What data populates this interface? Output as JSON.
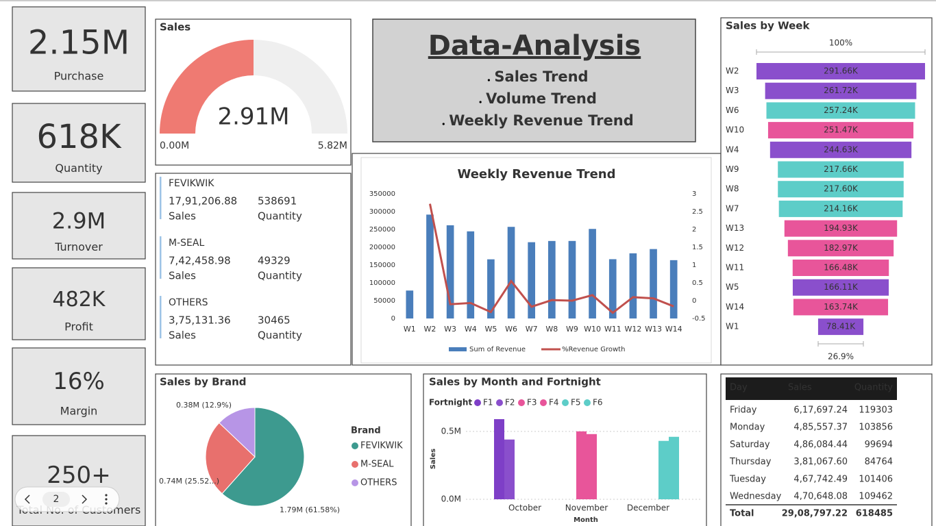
{
  "kpis": [
    {
      "value": "2.15M",
      "label": "Purchase"
    },
    {
      "value": "618K",
      "label": "Quantity"
    },
    {
      "value": "2.9M",
      "label": "Turnover"
    },
    {
      "value": "482K",
      "label": "Profit"
    },
    {
      "value": "16%",
      "label": "Margin"
    },
    {
      "value": "250+",
      "label": "Total No. of Customers"
    }
  ],
  "pager": {
    "page": 2
  },
  "title_box": {
    "title": "Data-Analysis",
    "items": [
      "Sales Trend",
      "Volume Trend",
      "Weekly Revenue Trend"
    ]
  },
  "brand_cards": [
    {
      "name": "FEVIKWIK",
      "sales": "17,91,206.88",
      "sales_label": "Sales",
      "quantity": 538691,
      "quantity_label": "Quantity"
    },
    {
      "name": "M-SEAL",
      "sales": "7,42,458.98",
      "sales_label": "Sales",
      "quantity": 49329,
      "quantity_label": "Quantity"
    },
    {
      "name": "OTHERS",
      "sales": "3,75,131.36",
      "sales_label": "Sales",
      "quantity": 30465,
      "quantity_label": "Quantity"
    }
  ],
  "table": {
    "columns": [
      "Day",
      "Sales",
      "Quantity"
    ],
    "rows": [
      [
        "Friday",
        "6,17,697.24",
        119303
      ],
      [
        "Monday",
        "4,85,557.37",
        103856
      ],
      [
        "Saturday",
        "4,86,084.44",
        99694
      ],
      [
        "Thursday",
        "3,81,067.60",
        84764
      ],
      [
        "Tuesday",
        "4,67,742.49",
        101406
      ],
      [
        "Wednesday",
        "4,70,648.08",
        109462
      ]
    ],
    "total": [
      "Total",
      "29,08,797.22",
      618485
    ]
  },
  "chart_data": [
    {
      "type": "gauge",
      "title": "Sales",
      "values": [
        2.91
      ],
      "value_labels": [
        "2.91M"
      ],
      "color": "#ef7a72",
      "ylim": [
        0,
        5.82
      ],
      "yticks": [
        {
          "value": 0,
          "label": "0.00M"
        },
        {
          "value": 5.82,
          "label": "5.82M"
        }
      ]
    },
    {
      "type": "combo",
      "title": "Weekly Revenue Trend",
      "categories": [
        "W1",
        "W2",
        "W3",
        "W4",
        "W5",
        "W6",
        "W7",
        "W8",
        "W9",
        "W10",
        "W11",
        "W12",
        "W13",
        "W14"
      ],
      "series": [
        {
          "name": "Sum of Revenue",
          "type": "bar",
          "color": "#4a7ebb",
          "values": [
            78410,
            291660,
            261720,
            244630,
            166110,
            257240,
            214160,
            217600,
            217660,
            251470,
            166480,
            182970,
            194930,
            163740
          ]
        },
        {
          "name": "%Revenue Growth",
          "type": "line",
          "axis": "y2",
          "color": "#c0504d",
          "values": [
            null,
            2.72,
            -0.1,
            -0.065,
            -0.32,
            0.55,
            -0.17,
            0.016,
            0.0,
            0.155,
            -0.34,
            0.099,
            0.065,
            -0.16
          ]
        }
      ],
      "ylim": [
        0,
        350000
      ],
      "yticks": [
        0,
        50000,
        100000,
        150000,
        200000,
        250000,
        300000,
        350000
      ],
      "y2lim": [
        -0.5,
        3
      ],
      "y2ticks": [
        -0.5,
        0,
        0.5,
        1,
        1.5,
        2,
        2.5,
        3
      ],
      "legend": "bottom"
    },
    {
      "type": "funnel",
      "title": "Sales by Week",
      "categories": [
        "W2",
        "W3",
        "W6",
        "W10",
        "W4",
        "W9",
        "W8",
        "W7",
        "W13",
        "W12",
        "W11",
        "W5",
        "W14",
        "W1"
      ],
      "values": [
        291.66,
        261.72,
        257.24,
        251.47,
        244.63,
        217.66,
        217.6,
        214.16,
        194.93,
        182.97,
        166.48,
        166.11,
        163.74,
        78.41
      ],
      "value_labels": [
        "291.66K",
        "261.72K",
        "257.24K",
        "251.47K",
        "244.63K",
        "217.66K",
        "217.60K",
        "214.16K",
        "194.93K",
        "182.97K",
        "166.48K",
        "166.11K",
        "163.74K",
        "78.41K"
      ],
      "colors": [
        "#8a4fcc",
        "#8a4fcc",
        "#5dcdc8",
        "#e8559a",
        "#8a4fcc",
        "#5dcdc8",
        "#5dcdc8",
        "#5dcdc8",
        "#e8559a",
        "#e8559a",
        "#e8559a",
        "#8a4fcc",
        "#e8559a",
        "#8a4fcc"
      ],
      "percent_labels": [
        {
          "value": 100,
          "label": "100%"
        },
        {
          "value": 26.9,
          "label": "26.9%"
        }
      ]
    },
    {
      "type": "pie",
      "title": "Sales by Brand",
      "legend_title": "Brand",
      "categories": [
        "FEVIKWIK",
        "M-SEAL",
        "OTHERS"
      ],
      "values": [
        61.58,
        25.52,
        12.9
      ],
      "value_labels": [
        "1.79M (61.58%)",
        "0.74M (25.52...)",
        "0.38M (12.9%)"
      ],
      "colors": [
        "#3d9a8f",
        "#e8706d",
        "#b795e6"
      ],
      "legend": "right"
    },
    {
      "type": "grouped-bar",
      "title": "Sales by Month and Fortnight",
      "legend_title": "Fortnight",
      "x_label": "Month",
      "y_label": "Sales",
      "categories": [
        "October",
        "November",
        "December"
      ],
      "series": [
        {
          "name": "F1",
          "color": "#7e3fc7",
          "values": [
            0.59,
            null,
            null
          ]
        },
        {
          "name": "F2",
          "color": "#8a4fcc",
          "values": [
            0.44,
            null,
            null
          ]
        },
        {
          "name": "F3",
          "color": "#e8559a",
          "values": [
            null,
            0.5,
            null
          ]
        },
        {
          "name": "F4",
          "color": "#e8559a",
          "values": [
            null,
            0.48,
            null
          ]
        },
        {
          "name": "F5",
          "color": "#5dcdc8",
          "values": [
            null,
            null,
            0.43
          ]
        },
        {
          "name": "F6",
          "color": "#5dcdc8",
          "values": [
            null,
            null,
            0.46
          ]
        }
      ],
      "ylim": [
        0,
        0.6
      ],
      "yticks": [
        {
          "value": 0,
          "label": "0.0M"
        },
        {
          "value": 0.5,
          "label": "0.5M"
        }
      ],
      "grid": true,
      "legend": "top"
    }
  ]
}
